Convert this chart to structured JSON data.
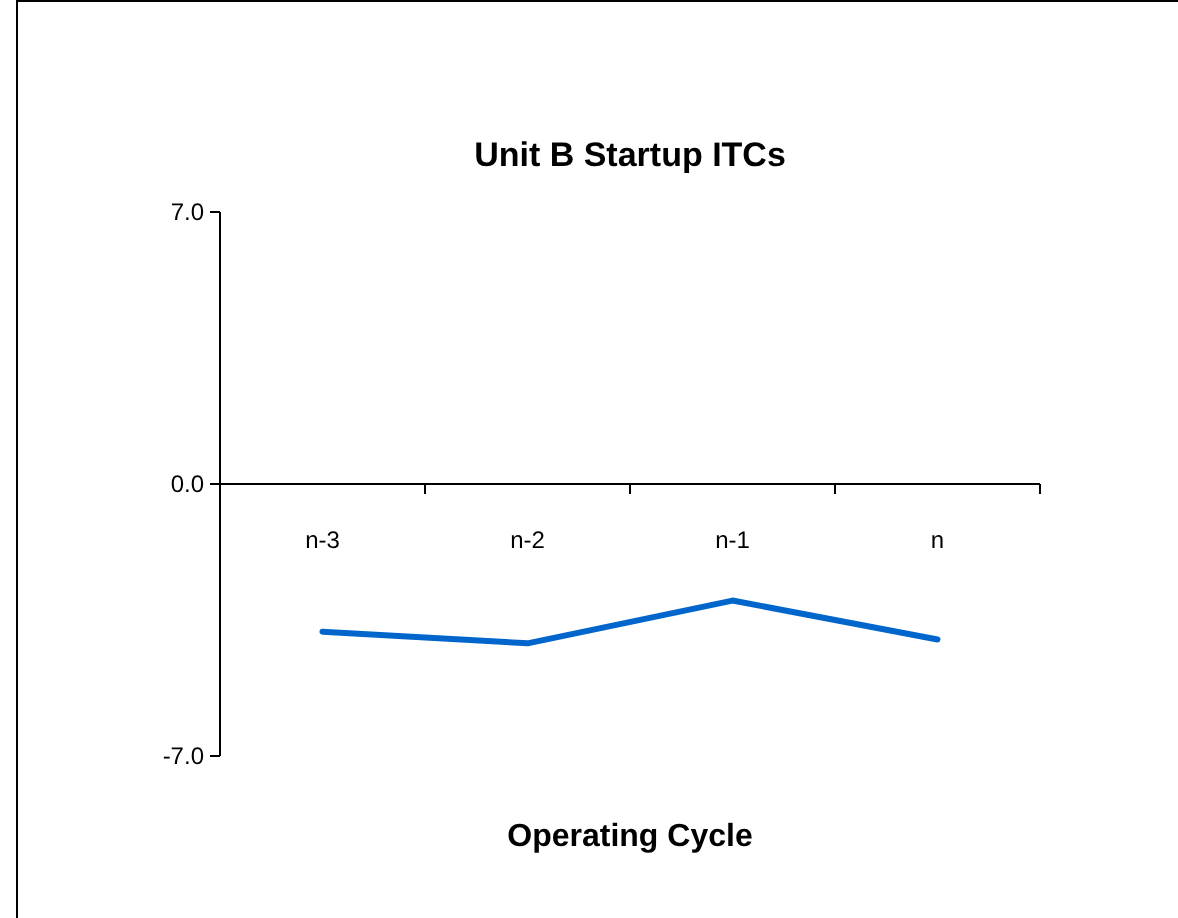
{
  "chart_data": {
    "type": "line",
    "title": "Unit B Startup ITCs",
    "xlabel": "Operating Cycle",
    "categories": [
      "n-3",
      "n-2",
      "n-1",
      "n"
    ],
    "series": [
      {
        "color": "#0066cc",
        "values": [
          -3.8,
          -4.1,
          -3.0,
          -4.0
        ]
      }
    ],
    "ylim": [
      -7,
      7
    ],
    "yticks": [
      {
        "value": 7,
        "label": "7.0"
      },
      {
        "value": 0,
        "label": "0.0"
      },
      {
        "value": -7,
        "label": "-7.0"
      }
    ],
    "grid": false,
    "marker": "none",
    "line_style": "solid"
  }
}
